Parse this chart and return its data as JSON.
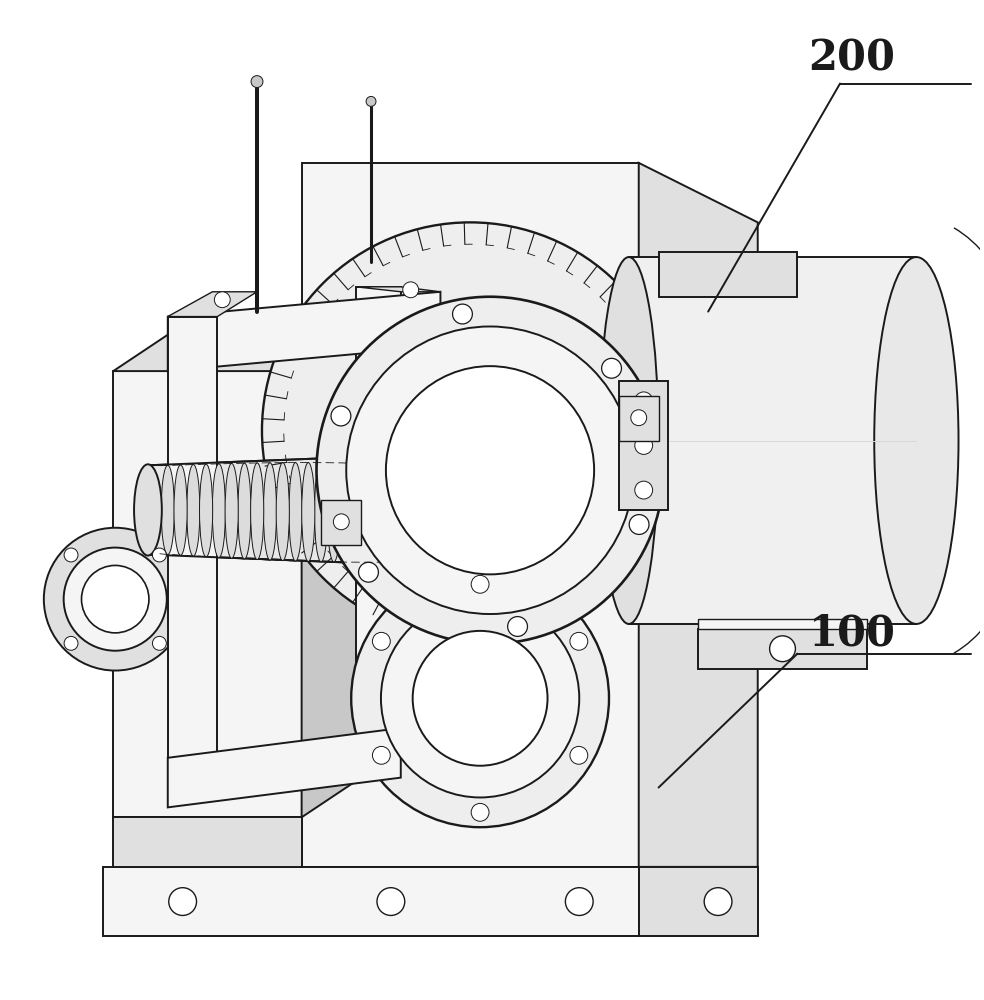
{
  "bg_color": "#ffffff",
  "label_200": "200",
  "label_100": "100",
  "label_fontsize": 30,
  "label_fontweight": "bold",
  "lc": "#1a1a1a",
  "lw": 1.4,
  "lw_thin": 0.7,
  "lw_thick": 2.0,
  "fc_main": "#f0f0f0",
  "fc_light": "#f5f5f5",
  "fc_mid": "#e0e0e0",
  "fc_dark": "#c8c8c8",
  "fc_white": "#ffffff"
}
